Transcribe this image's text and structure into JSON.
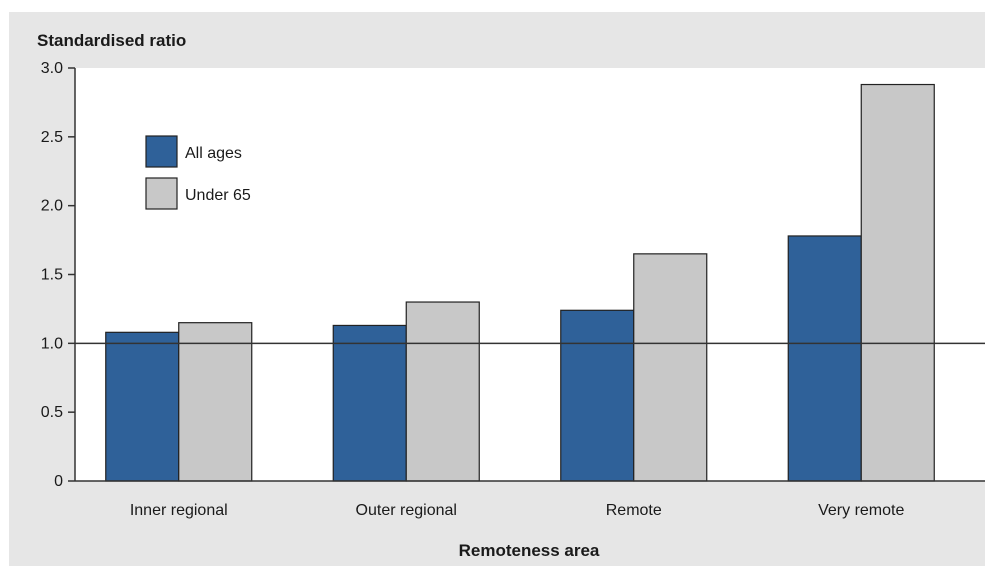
{
  "chart_data": {
    "type": "bar",
    "title": "",
    "ylabel": "Standardised ratio",
    "xlabel": "Remoteness area",
    "categories": [
      "Inner regional",
      "Outer regional",
      "Remote",
      "Very remote"
    ],
    "series": [
      {
        "name": "All ages",
        "values": [
          1.08,
          1.13,
          1.24,
          1.78
        ],
        "color": "#2f6199"
      },
      {
        "name": "Under 65",
        "values": [
          1.15,
          1.3,
          1.65,
          2.88
        ],
        "color": "#c8c8c8"
      }
    ],
    "ylim": [
      0,
      3.0
    ],
    "yticks": [
      "0",
      "0.5",
      "1.0",
      "1.5",
      "2.0",
      "2.5",
      "3.0"
    ],
    "ytick_values": [
      0,
      0.5,
      1.0,
      1.5,
      2.0,
      2.5,
      3.0
    ],
    "reference_line": 1.0,
    "legend_position": "top-left",
    "grid": false
  }
}
